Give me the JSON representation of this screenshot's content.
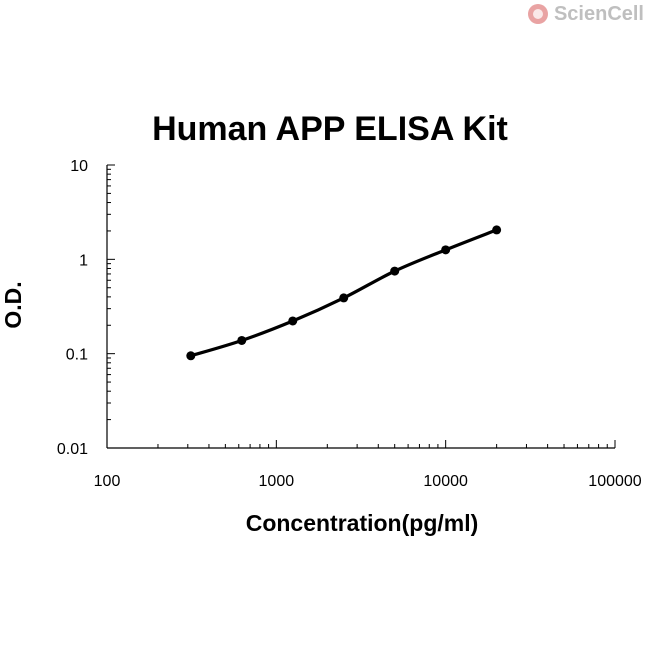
{
  "brand": {
    "name": "ScienCell",
    "color": "#c8c8c8",
    "icon_color": "#e9a3a3"
  },
  "chart_data": {
    "type": "scatter",
    "title": "Human APP ELISA Kit",
    "xlabel": "Concentration(pg/ml)",
    "ylabel": "O.D.",
    "xscale": "log",
    "yscale": "log",
    "xlim": [
      100,
      100000
    ],
    "ylim": [
      0.01,
      10
    ],
    "xticks": [
      100,
      1000,
      10000,
      100000
    ],
    "xtick_labels": [
      "100",
      "1000",
      "10000",
      "100000"
    ],
    "yticks": [
      0.01,
      0.1,
      1,
      10
    ],
    "ytick_labels": [
      "0.01",
      "0.1",
      "1",
      "10"
    ],
    "grid": false,
    "series": [
      {
        "x": [
          312.5,
          625,
          1250,
          2500,
          5000,
          10000,
          20000
        ],
        "y": [
          0.095,
          0.138,
          0.222,
          0.39,
          0.75,
          1.26,
          2.05
        ],
        "color": "#000000",
        "trendline": true
      }
    ]
  }
}
